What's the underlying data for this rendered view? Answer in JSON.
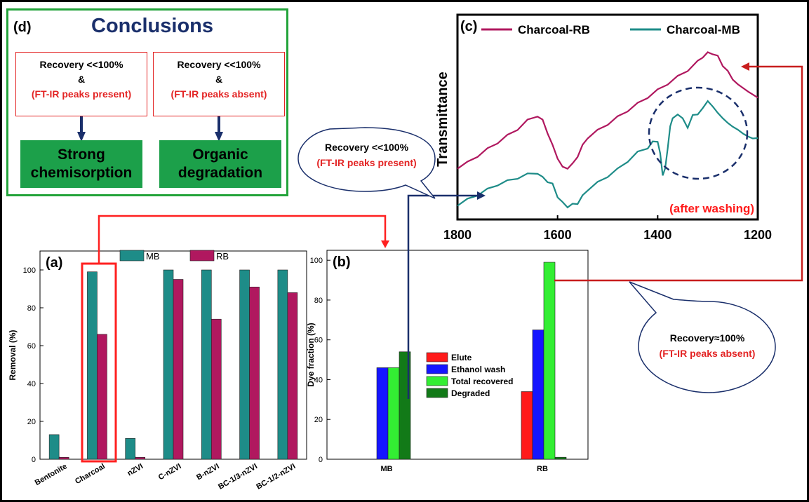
{
  "panel_d": {
    "label": "(d)",
    "title": "Conclusions",
    "cases": [
      {
        "line1": "Recovery <<100%",
        "line2": "&",
        "line3": "(FT-IR peaks present)",
        "result": "Strong chemisorption"
      },
      {
        "line1": "Recovery <<100%",
        "line2": "&",
        "line3": "(FT-IR peaks absent)",
        "result": "Organic degradation"
      }
    ]
  },
  "bubbles": {
    "present": {
      "line1": "Recovery <<100%",
      "line2": "(FT-IR peaks present)"
    },
    "absent": {
      "line1": "Recovery≈100%",
      "line2": "(FT-IR peaks absent)"
    }
  },
  "colors": {
    "teal": "#1e8c88",
    "magenta": "#b0185f",
    "red": "#ff1a1a",
    "blue": "#1515ff",
    "lime": "#33ee33",
    "darkgreen": "#127a18",
    "green_box": "#1ca04a",
    "navy": "#1a2f6b",
    "arrow_red": "#c81e1e"
  },
  "chart_data": [
    {
      "panel": "(a)",
      "type": "bar",
      "ylabel": "Removal (%)",
      "ylim": [
        0,
        110
      ],
      "yticks": [
        "0",
        "20",
        "40",
        "60",
        "80",
        "100"
      ],
      "categories": [
        "Bentonite",
        "Charcoal",
        "nZVI",
        "C-nZVI",
        "B-nZVI",
        "BC-1/3-nZVI",
        "BC-1/2-nZVI"
      ],
      "series": [
        {
          "name": "MB",
          "color": "#1e8c88",
          "values": [
            13,
            99,
            11,
            100,
            100,
            100,
            100
          ]
        },
        {
          "name": "RB",
          "color": "#b0185f",
          "values": [
            1,
            66,
            1,
            95,
            74,
            91,
            88
          ]
        }
      ],
      "legend": "top"
    },
    {
      "panel": "(b)",
      "type": "bar",
      "ylabel": "Dye fraction (%)",
      "ylim": [
        0,
        105
      ],
      "yticks": [
        "0",
        "20",
        "40",
        "60",
        "80",
        "100"
      ],
      "categories": [
        "MB",
        "RB"
      ],
      "series": [
        {
          "name": "Elute",
          "color": "#ff1a1a",
          "values": [
            0,
            34
          ]
        },
        {
          "name": "Ethanol wash",
          "color": "#1515ff",
          "values": [
            46,
            65
          ]
        },
        {
          "name": "Total recovered",
          "color": "#33ee33",
          "values": [
            46,
            99
          ]
        },
        {
          "name": "Degraded",
          "color": "#127a18",
          "values": [
            54,
            1
          ]
        }
      ],
      "legend": "center"
    },
    {
      "panel": "(c)",
      "type": "line",
      "ylabel": "Transmittance",
      "xlim": [
        1800,
        1200
      ],
      "xticks": [
        "1800",
        "1600",
        "1400",
        "1200"
      ],
      "annotation": "(after washing)",
      "series": [
        {
          "name": "Charcoal-RB",
          "color": "#b0185f",
          "x": [
            1800,
            1780,
            1760,
            1740,
            1720,
            1700,
            1680,
            1660,
            1640,
            1630,
            1620,
            1610,
            1600,
            1590,
            1580,
            1570,
            1560,
            1550,
            1540,
            1520,
            1500,
            1480,
            1460,
            1440,
            1420,
            1400,
            1380,
            1360,
            1340,
            1320,
            1310,
            1300,
            1290,
            1280,
            1270,
            1260,
            1250,
            1240,
            1220,
            1200
          ],
          "y": [
            0.22,
            0.25,
            0.29,
            0.33,
            0.37,
            0.41,
            0.45,
            0.5,
            0.53,
            0.5,
            0.43,
            0.35,
            0.28,
            0.22,
            0.22,
            0.24,
            0.29,
            0.35,
            0.4,
            0.44,
            0.48,
            0.52,
            0.56,
            0.6,
            0.64,
            0.68,
            0.72,
            0.76,
            0.8,
            0.85,
            0.88,
            0.9,
            0.9,
            0.88,
            0.83,
            0.79,
            0.75,
            0.71,
            0.68,
            0.63
          ]
        },
        {
          "name": "Charcoal-MB",
          "color": "#1e8c88",
          "x": [
            1800,
            1780,
            1760,
            1740,
            1720,
            1700,
            1680,
            1660,
            1640,
            1630,
            1620,
            1610,
            1600,
            1590,
            1580,
            1570,
            1560,
            1550,
            1540,
            1520,
            1500,
            1480,
            1460,
            1440,
            1420,
            1410,
            1400,
            1395,
            1390,
            1385,
            1380,
            1375,
            1370,
            1360,
            1350,
            1340,
            1330,
            1320,
            1310,
            1300,
            1290,
            1280,
            1270,
            1260,
            1250,
            1240,
            1230,
            1220,
            1210,
            1200
          ],
          "y": [
            0.0,
            0.03,
            0.06,
            0.09,
            0.12,
            0.14,
            0.16,
            0.18,
            0.19,
            0.16,
            0.14,
            0.12,
            0.05,
            0.01,
            -0.01,
            0.0,
            0.01,
            0.05,
            0.09,
            0.13,
            0.17,
            0.21,
            0.26,
            0.31,
            0.34,
            0.37,
            0.38,
            0.3,
            0.18,
            0.21,
            0.34,
            0.46,
            0.52,
            0.53,
            0.52,
            0.45,
            0.54,
            0.53,
            0.58,
            0.61,
            0.59,
            0.54,
            0.52,
            0.48,
            0.47,
            0.44,
            0.43,
            0.4,
            0.4,
            0.39
          ]
        }
      ],
      "legend": "top"
    }
  ]
}
